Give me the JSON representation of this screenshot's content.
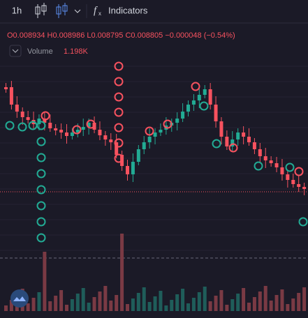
{
  "toolbar": {
    "interval": "1h",
    "indicators": "Indicators"
  },
  "legend": {
    "open": "O0.008934",
    "high": "H0.008986",
    "low": "L0.008795",
    "close": "C0.008805",
    "change": "−0.000048 (−0.54%)"
  },
  "volume": {
    "label": "Volume",
    "value": "1.198K"
  }
}
